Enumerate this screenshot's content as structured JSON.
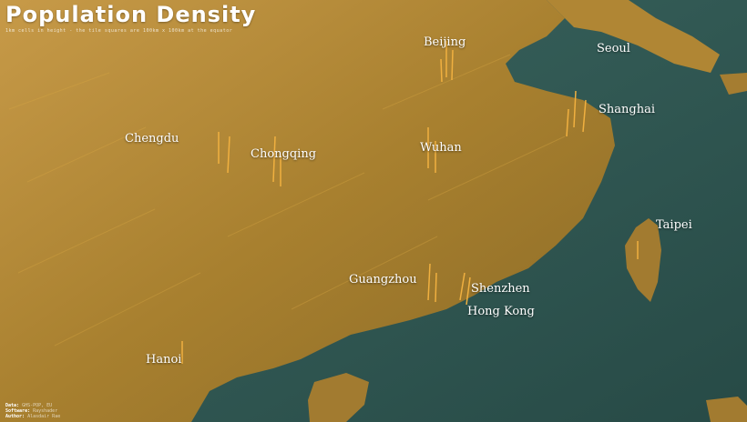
{
  "title": "Population Density",
  "subtitle": "1km cells in height - the tile squares are 100km x 100km at the equator",
  "cities": [
    {
      "id": "beijing",
      "name": "Beijing"
    },
    {
      "id": "seoul",
      "name": "Seoul"
    },
    {
      "id": "shanghai",
      "name": "Shanghai"
    },
    {
      "id": "chengdu",
      "name": "Chengdu"
    },
    {
      "id": "chongqing",
      "name": "Chongqing"
    },
    {
      "id": "wuhan",
      "name": "Wuhan"
    },
    {
      "id": "taipei",
      "name": "Taipei"
    },
    {
      "id": "guangzhou",
      "name": "Guangzhou"
    },
    {
      "id": "shenzhen",
      "name": "Shenzhen"
    },
    {
      "id": "hong_kong",
      "name": "Hong Kong"
    },
    {
      "id": "hanoi",
      "name": "Hanoi"
    }
  ],
  "credits": {
    "data_label": "Data:",
    "data_value": "GHS-POP, EU",
    "software_label": "Software:",
    "software_value": "Rayshader",
    "author_label": "Author:",
    "author_value": "Alasdair Rae"
  },
  "colors": {
    "land": "#b7862f",
    "water": "#2f5752",
    "spike": "#e8a030",
    "label": "#ffffff"
  }
}
